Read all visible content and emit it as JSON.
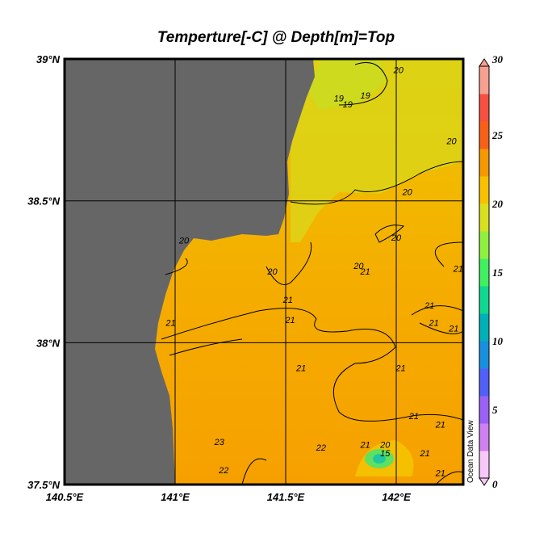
{
  "title": "Temperture[-C] @ Depth[m]=Top",
  "watermark": "Ocean Data View",
  "map": {
    "lon_range": [
      140.5,
      142.3
    ],
    "lat_range": [
      37.5,
      39.0
    ],
    "lon_ticks": [
      {
        "value": 140.5,
        "label": "140.5°E"
      },
      {
        "value": 141.0,
        "label": "141°E"
      },
      {
        "value": 141.5,
        "label": "141.5°E"
      },
      {
        "value": 142.0,
        "label": "142°E"
      }
    ],
    "lat_ticks": [
      {
        "value": 39.0,
        "label": "39°N"
      },
      {
        "value": 38.5,
        "label": "38.5°N"
      },
      {
        "value": 38.0,
        "label": "38°N"
      },
      {
        "value": 37.5,
        "label": "37.5°N"
      }
    ],
    "grid": true,
    "land_color": "#666666"
  },
  "colorbar": {
    "min": 0,
    "max": 30,
    "ticks": [
      "0",
      "5",
      "10",
      "15",
      "20",
      "25",
      "30"
    ],
    "colors": [
      "#f8c8f8",
      "#d080f0",
      "#9a60f8",
      "#5060f8",
      "#1890e0",
      "#00b0b8",
      "#10d890",
      "#40f060",
      "#90f040",
      "#d8e020",
      "#f8c000",
      "#f89800",
      "#f86018",
      "#f85040",
      "#f8a090"
    ]
  },
  "contour_labels": [
    {
      "text": "20",
      "lon": 142.01,
      "lat": 38.95
    },
    {
      "text": "19",
      "lon": 141.74,
      "lat": 38.85
    },
    {
      "text": "19",
      "lon": 141.86,
      "lat": 38.86
    },
    {
      "text": "19",
      "lon": 141.78,
      "lat": 38.83
    },
    {
      "text": "20",
      "lon": 142.25,
      "lat": 38.7
    },
    {
      "text": "20",
      "lon": 142.05,
      "lat": 38.52
    },
    {
      "text": "20",
      "lon": 141.04,
      "lat": 38.35
    },
    {
      "text": "20",
      "lon": 142.0,
      "lat": 38.36
    },
    {
      "text": "20",
      "lon": 141.83,
      "lat": 38.26
    },
    {
      "text": "21",
      "lon": 141.86,
      "lat": 38.24
    },
    {
      "text": "20",
      "lon": 141.44,
      "lat": 38.24
    },
    {
      "text": "21",
      "lon": 142.28,
      "lat": 38.25
    },
    {
      "text": "21",
      "lon": 141.51,
      "lat": 38.14
    },
    {
      "text": "21",
      "lon": 142.15,
      "lat": 38.12
    },
    {
      "text": "21",
      "lon": 140.98,
      "lat": 38.06
    },
    {
      "text": "21",
      "lon": 141.52,
      "lat": 38.07
    },
    {
      "text": "21",
      "lon": 142.17,
      "lat": 38.06
    },
    {
      "text": "21",
      "lon": 142.26,
      "lat": 38.04
    },
    {
      "text": "21",
      "lon": 141.57,
      "lat": 37.9
    },
    {
      "text": "21",
      "lon": 142.02,
      "lat": 37.9
    },
    {
      "text": "21",
      "lon": 142.08,
      "lat": 37.73
    },
    {
      "text": "21",
      "lon": 142.2,
      "lat": 37.7
    },
    {
      "text": "22",
      "lon": 141.66,
      "lat": 37.62
    },
    {
      "text": "21",
      "lon": 141.86,
      "lat": 37.63
    },
    {
      "text": "20",
      "lon": 141.95,
      "lat": 37.63
    },
    {
      "text": "21",
      "lon": 142.13,
      "lat": 37.6
    },
    {
      "text": "23",
      "lon": 141.2,
      "lat": 37.64
    },
    {
      "text": "22",
      "lon": 141.22,
      "lat": 37.54
    },
    {
      "text": "15",
      "lon": 141.95,
      "lat": 37.6
    },
    {
      "text": "21",
      "lon": 142.2,
      "lat": 37.53
    }
  ]
}
